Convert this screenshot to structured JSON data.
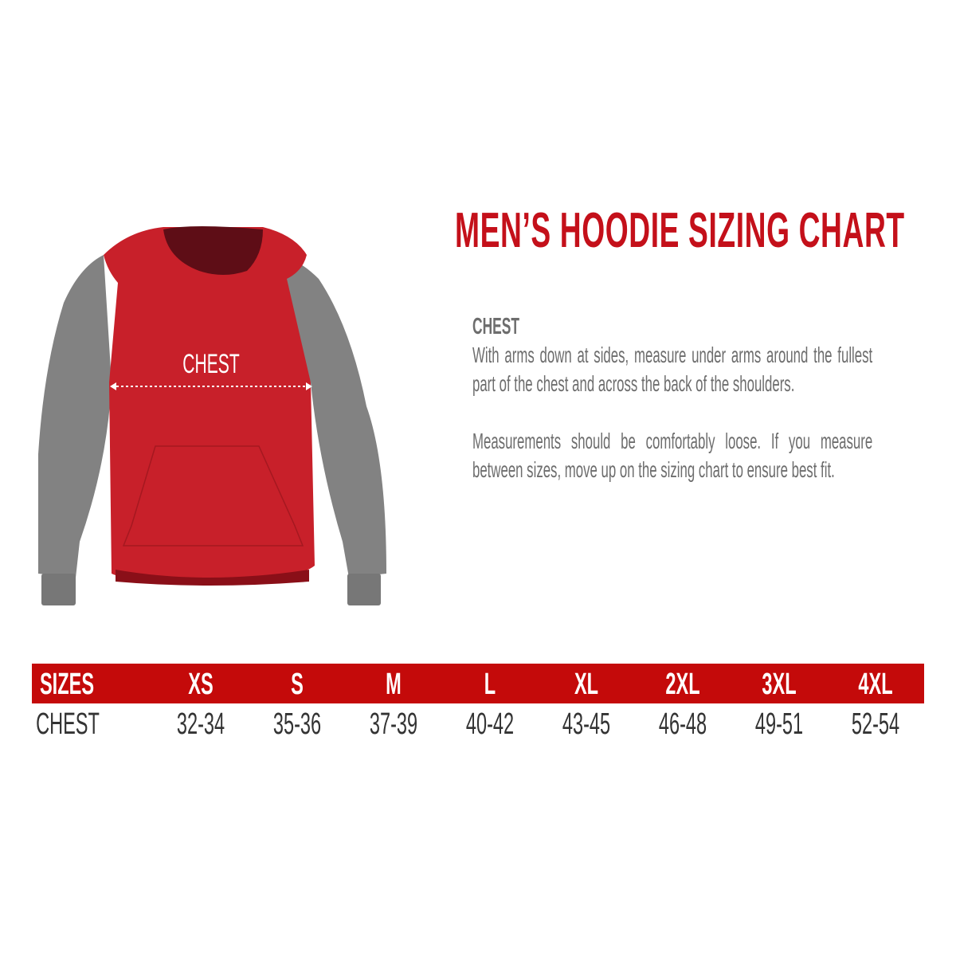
{
  "title": "MEN’S HOODIE SIZING CHART",
  "illustration": {
    "chest_label": "CHEST",
    "colors": {
      "body": "#c8202a",
      "sleeves": "#808080",
      "hood_inner": "#5e0d16"
    }
  },
  "description": {
    "heading": "CHEST",
    "paragraph1": "With arms down at sides, measure under arms around the fullest part of the chest and across the back of the shoulders.",
    "paragraph2": "Measurements should be comfortably loose. If you measure between sizes, move up on the sizing chart to ensure best fit."
  },
  "table": {
    "header_color": "#c40a0a",
    "headers": [
      "SIZES",
      "XS",
      "S",
      "M",
      "L",
      "XL",
      "2XL",
      "3XL",
      "4XL"
    ],
    "row": [
      "CHEST",
      "32-34",
      "35-36",
      "37-39",
      "40-42",
      "43-45",
      "46-48",
      "49-51",
      "52-54"
    ]
  }
}
